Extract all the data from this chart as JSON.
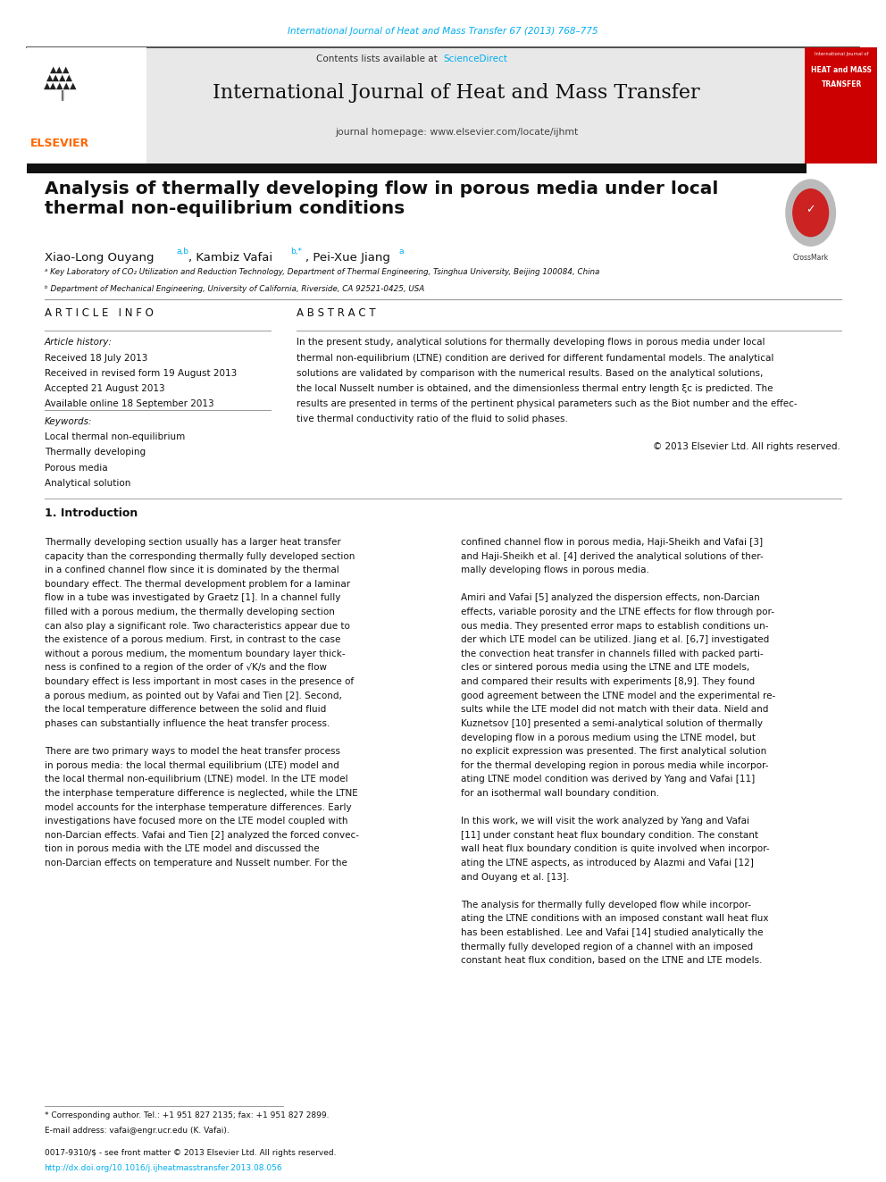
{
  "page_width": 9.92,
  "page_height": 13.23,
  "bg_color": "#ffffff",
  "journal_ref_text": "International Journal of Heat and Mass Transfer 67 (2013) 768–775",
  "journal_ref_color": "#00AEEF",
  "header_bg": "#e8e8e8",
  "header_journal_name": "International Journal of Heat and Mass Transfer",
  "header_homepage": "journal homepage: www.elsevier.com/locate/ijhmt",
  "elsevier_color": "#FF6600",
  "red_box_color": "#CC0000",
  "paper_title": "Analysis of thermally developing flow in porous media under local\nthermal non-equilibrium conditions",
  "affil_a": "ᵃ Key Laboratory of CO₂ Utilization and Reduction Technology, Department of Thermal Engineering, Tsinghua University, Beijing 100084, China",
  "affil_b": "ᵇ Department of Mechanical Engineering, University of California, Riverside, CA 92521-0425, USA",
  "article_info_title": "A R T I C L E   I N F O",
  "abstract_title": "A B S T R A C T",
  "article_history_label": "Article history:",
  "received": "Received 18 July 2013",
  "received_revised": "Received in revised form 19 August 2013",
  "accepted": "Accepted 21 August 2013",
  "available": "Available online 18 September 2013",
  "keywords_label": "Keywords:",
  "keywords": [
    "Local thermal non-equilibrium",
    "Thermally developing",
    "Porous media",
    "Analytical solution"
  ],
  "abs_lines": [
    "In the present study, analytical solutions for thermally developing flows in porous media under local",
    "thermal non-equilibrium (LTNE) condition are derived for different fundamental models. The analytical",
    "solutions are validated by comparison with the numerical results. Based on the analytical solutions,",
    "the local Nusselt number is obtained, and the dimensionless thermal entry length ξc is predicted. The",
    "results are presented in terms of the pertinent physical parameters such as the Biot number and the effec-",
    "tive thermal conductivity ratio of the fluid to solid phases."
  ],
  "copyright": "© 2013 Elsevier Ltd. All rights reserved.",
  "section1_title": "1. Introduction",
  "col1_lines": [
    "Thermally developing section usually has a larger heat transfer",
    "capacity than the corresponding thermally fully developed section",
    "in a confined channel flow since it is dominated by the thermal",
    "boundary effect. The thermal development problem for a laminar",
    "flow in a tube was investigated by Graetz [1]. In a channel fully",
    "filled with a porous medium, the thermally developing section",
    "can also play a significant role. Two characteristics appear due to",
    "the existence of a porous medium. First, in contrast to the case",
    "without a porous medium, the momentum boundary layer thick-",
    "ness is confined to a region of the order of √K/s and the flow",
    "boundary effect is less important in most cases in the presence of",
    "a porous medium, as pointed out by Vafai and Tien [2]. Second,",
    "the local temperature difference between the solid and fluid",
    "phases can substantially influence the heat transfer process.",
    "",
    "There are two primary ways to model the heat transfer process",
    "in porous media: the local thermal equilibrium (LTE) model and",
    "the local thermal non-equilibrium (LTNE) model. In the LTE model",
    "the interphase temperature difference is neglected, while the LTNE",
    "model accounts for the interphase temperature differences. Early",
    "investigations have focused more on the LTE model coupled with",
    "non-Darcian effects. Vafai and Tien [2] analyzed the forced convec-",
    "tion in porous media with the LTE model and discussed the",
    "non-Darcian effects on temperature and Nusselt number. For the"
  ],
  "col2_lines": [
    "confined channel flow in porous media, Haji-Sheikh and Vafai [3]",
    "and Haji-Sheikh et al. [4] derived the analytical solutions of ther-",
    "mally developing flows in porous media.",
    "",
    "Amiri and Vafai [5] analyzed the dispersion effects, non-Darcian",
    "effects, variable porosity and the LTNE effects for flow through por-",
    "ous media. They presented error maps to establish conditions un-",
    "der which LTE model can be utilized. Jiang et al. [6,7] investigated",
    "the convection heat transfer in channels filled with packed parti-",
    "cles or sintered porous media using the LTNE and LTE models,",
    "and compared their results with experiments [8,9]. They found",
    "good agreement between the LTNE model and the experimental re-",
    "sults while the LTE model did not match with their data. Nield and",
    "Kuznetsov [10] presented a semi-analytical solution of thermally",
    "developing flow in a porous medium using the LTNE model, but",
    "no explicit expression was presented. The first analytical solution",
    "for the thermal developing region in porous media while incorpor-",
    "ating LTNE model condition was derived by Yang and Vafai [11]",
    "for an isothermal wall boundary condition.",
    "",
    "In this work, we will visit the work analyzed by Yang and Vafai",
    "[11] under constant heat flux boundary condition. The constant",
    "wall heat flux boundary condition is quite involved when incorpor-",
    "ating the LTNE aspects, as introduced by Alazmi and Vafai [12]",
    "and Ouyang et al. [13].",
    "",
    "The analysis for thermally fully developed flow while incorpor-",
    "ating the LTNE conditions with an imposed constant wall heat flux",
    "has been established. Lee and Vafai [14] studied analytically the",
    "thermally fully developed region of a channel with an imposed",
    "constant heat flux condition, based on the LTNE and LTE models."
  ],
  "footnote_star": "* Corresponding author. Tel.: +1 951 827 2135; fax: +1 951 827 2899.",
  "footnote_email": "E-mail address: vafai@engr.ucr.edu (K. Vafai).",
  "footer_issn": "0017-9310/$ - see front matter © 2013 Elsevier Ltd. All rights reserved.",
  "footer_doi": "http://dx.doi.org/10.1016/j.ijheatmasstransfer.2013.08.056"
}
